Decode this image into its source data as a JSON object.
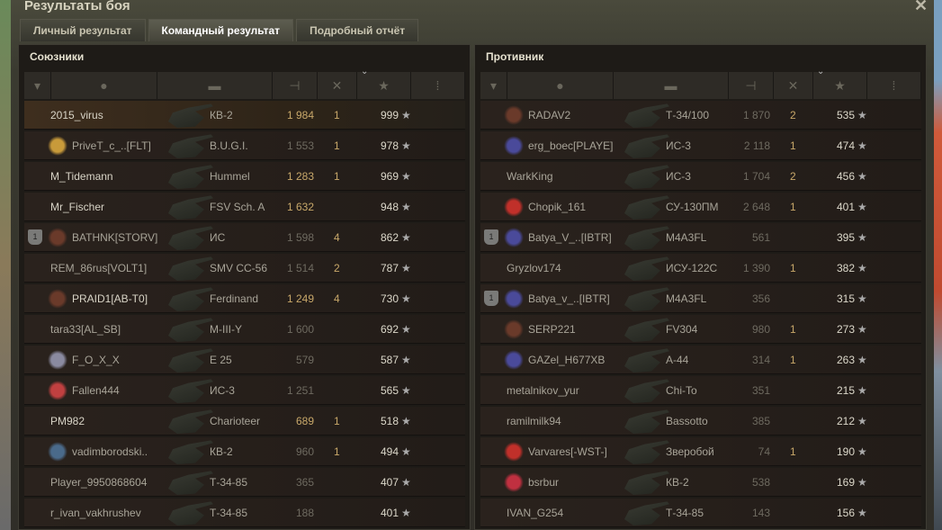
{
  "window": {
    "title": "Результаты боя",
    "close_icon": "close-icon"
  },
  "tabs": [
    {
      "label": "Личный результат",
      "active": false
    },
    {
      "label": "Командный результат",
      "active": true
    },
    {
      "label": "Подробный отчёт",
      "active": false
    }
  ],
  "columns": [
    "rank-icon",
    "player-icon",
    "vehicle-icon",
    "damage-icon",
    "frags-icon",
    "xp-star-icon",
    "medal-icon"
  ],
  "sorted_column": "xp",
  "allies": {
    "title": "Союзники",
    "rows": [
      {
        "rank": "",
        "badge": "",
        "name": "2015_virus",
        "vehicle": "КВ-2",
        "damage": "1 984",
        "dmg_hi": true,
        "frags": "1",
        "xp": "999",
        "me": true
      },
      {
        "rank": "",
        "badge": "#c89a3a",
        "name": "PriveT_c_..[FLT]",
        "vehicle": "B.U.G.I.",
        "damage": "1 553",
        "dmg_hi": false,
        "frags": "1",
        "xp": "978"
      },
      {
        "rank": "",
        "badge": "",
        "name": "M_Tidemann",
        "vehicle": "Hummel",
        "damage": "1 283",
        "dmg_hi": true,
        "frags": "1",
        "xp": "969",
        "hi": true
      },
      {
        "rank": "",
        "badge": "",
        "name": "Mr_Fischer",
        "vehicle": "FSV Sch. A",
        "damage": "1 632",
        "dmg_hi": true,
        "frags": "",
        "xp": "948",
        "hi": true
      },
      {
        "rank": "1",
        "badge": "#6a3a2a",
        "name": "BATHNK[STORV]",
        "vehicle": "ИС",
        "damage": "1 598",
        "dmg_hi": false,
        "frags": "4",
        "xp": "862"
      },
      {
        "rank": "",
        "badge": "",
        "name": "REM_86rus[VOLT1]",
        "vehicle": "SMV CC-56",
        "damage": "1 514",
        "dmg_hi": false,
        "frags": "2",
        "xp": "787"
      },
      {
        "rank": "",
        "badge": "#6a3a2a",
        "name": "PRAID1[AB-T0]",
        "vehicle": "Ferdinand",
        "damage": "1 249",
        "dmg_hi": true,
        "frags": "4",
        "xp": "730",
        "hi": true
      },
      {
        "rank": "",
        "badge": "",
        "name": "tara33[AL_SB]",
        "vehicle": "M-III-Y",
        "damage": "1 600",
        "dmg_hi": false,
        "frags": "",
        "xp": "692"
      },
      {
        "rank": "",
        "badge": "#8a8aa0",
        "name": "F_O_X_X",
        "vehicle": "E 25",
        "damage": "579",
        "dmg_hi": false,
        "frags": "",
        "xp": "587"
      },
      {
        "rank": "",
        "badge": "#c04040",
        "name": "Fallen444",
        "vehicle": "ИС-3",
        "damage": "1 251",
        "dmg_hi": false,
        "frags": "",
        "xp": "565"
      },
      {
        "rank": "",
        "badge": "",
        "name": "PM982",
        "vehicle": "Charioteer",
        "damage": "689",
        "dmg_hi": true,
        "frags": "1",
        "xp": "518",
        "hi": true
      },
      {
        "rank": "",
        "badge": "#4a6a8a",
        "name": "vadimborodski..",
        "vehicle": "КВ-2",
        "damage": "960",
        "dmg_hi": false,
        "frags": "1",
        "xp": "494"
      },
      {
        "rank": "",
        "badge": "",
        "name": "Player_9950868604",
        "vehicle": "Т-34-85",
        "damage": "365",
        "dmg_hi": false,
        "frags": "",
        "xp": "407"
      },
      {
        "rank": "",
        "badge": "",
        "name": "r_ivan_vakhrushev",
        "vehicle": "Т-34-85",
        "damage": "188",
        "dmg_hi": false,
        "frags": "",
        "xp": "401"
      }
    ]
  },
  "enemies": {
    "title": "Противник",
    "rows": [
      {
        "rank": "",
        "badge": "#6a3a2a",
        "name": "RADAV2",
        "vehicle": "Т-34/100",
        "damage": "1 870",
        "dmg_hi": false,
        "frags": "2",
        "xp": "535"
      },
      {
        "rank": "",
        "badge": "#4a4a9a",
        "name": "erg_boec[PLAYE]",
        "vehicle": "ИС-3",
        "damage": "2 118",
        "dmg_hi": false,
        "frags": "1",
        "xp": "474"
      },
      {
        "rank": "",
        "badge": "",
        "name": "WarkKing",
        "vehicle": "ИС-3",
        "damage": "1 704",
        "dmg_hi": false,
        "frags": "2",
        "xp": "456"
      },
      {
        "rank": "",
        "badge": "#c0302a",
        "name": "Chopik_161",
        "vehicle": "СУ-130ПМ",
        "damage": "2 648",
        "dmg_hi": false,
        "frags": "1",
        "xp": "401"
      },
      {
        "rank": "1",
        "badge": "#4a4a9a",
        "name": "Batya_V_..[IBTR]",
        "vehicle": "M4A3FL",
        "damage": "561",
        "dmg_hi": false,
        "frags": "",
        "xp": "395"
      },
      {
        "rank": "",
        "badge": "",
        "name": "Gryzlov174",
        "vehicle": "ИСУ-122С",
        "damage": "1 390",
        "dmg_hi": false,
        "frags": "1",
        "xp": "382"
      },
      {
        "rank": "1",
        "badge": "#4a4a9a",
        "name": "Batya_v_..[IBTR]",
        "vehicle": "M4A3FL",
        "damage": "356",
        "dmg_hi": false,
        "frags": "",
        "xp": "315"
      },
      {
        "rank": "",
        "badge": "#6a3a2a",
        "name": "SERP221",
        "vehicle": "FV304",
        "damage": "980",
        "dmg_hi": false,
        "frags": "1",
        "xp": "273"
      },
      {
        "rank": "",
        "badge": "#4a4a9a",
        "name": "GAZel_H677XB",
        "vehicle": "A-44",
        "damage": "314",
        "dmg_hi": false,
        "frags": "1",
        "xp": "263"
      },
      {
        "rank": "",
        "badge": "",
        "name": "metalnikov_yur",
        "vehicle": "Chi-To",
        "damage": "351",
        "dmg_hi": false,
        "frags": "",
        "xp": "215"
      },
      {
        "rank": "",
        "badge": "",
        "name": "ramilmilk94",
        "vehicle": "Bassotto",
        "damage": "385",
        "dmg_hi": false,
        "frags": "",
        "xp": "212"
      },
      {
        "rank": "",
        "badge": "#c0302a",
        "name": "Varvares[-WST-]",
        "vehicle": "Зверобой",
        "damage": "74",
        "dmg_hi": false,
        "frags": "1",
        "xp": "190"
      },
      {
        "rank": "",
        "badge": "#c03040",
        "name": "bsrbur",
        "vehicle": "КВ-2",
        "damage": "538",
        "dmg_hi": false,
        "frags": "",
        "xp": "169"
      },
      {
        "rank": "",
        "badge": "",
        "name": "IVAN_G254",
        "vehicle": "Т-34-85",
        "damage": "143",
        "dmg_hi": false,
        "frags": "",
        "xp": "156"
      }
    ]
  }
}
